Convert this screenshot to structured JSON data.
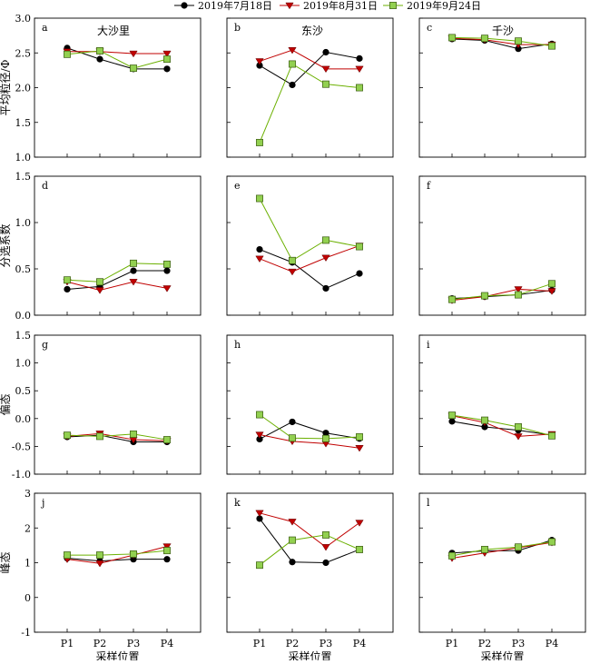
{
  "legend": [
    {
      "label": "2019年7月18日",
      "color": "#000000",
      "marker": "circle"
    },
    {
      "label": "2019年8月31日",
      "color": "#c00000",
      "marker": "triangle-down"
    },
    {
      "label": "2019年9月24日",
      "color": "#6bb000",
      "marker": "square"
    }
  ],
  "x_axis_title": "采样位置",
  "chart_data": [
    {
      "id": "a",
      "type": "line",
      "title": "大沙里",
      "ylabel": "平均粒径/Φ",
      "ylim": [
        1.0,
        3.0
      ],
      "yticks": [
        "1.0",
        "1.5",
        "2.0",
        "2.5",
        "3.0"
      ],
      "categories": [
        "P1",
        "P2",
        "P3",
        "P4"
      ],
      "series": [
        {
          "name": "2019年7月18日",
          "values": [
            2.57,
            2.41,
            2.27,
            2.27
          ]
        },
        {
          "name": "2019年8月31日",
          "values": [
            2.52,
            2.52,
            2.49,
            2.49
          ]
        },
        {
          "name": "2019年9月24日",
          "values": [
            2.48,
            2.53,
            2.28,
            2.41
          ]
        }
      ]
    },
    {
      "id": "b",
      "type": "line",
      "title": "东沙",
      "ylabel": "",
      "ylim": [
        1.0,
        3.0
      ],
      "yticks": [],
      "categories": [
        "P1",
        "P2",
        "P3",
        "P4"
      ],
      "series": [
        {
          "name": "2019年7月18日",
          "values": [
            2.32,
            2.04,
            2.51,
            2.42
          ]
        },
        {
          "name": "2019年8月31日",
          "values": [
            2.38,
            2.54,
            2.27,
            2.27
          ]
        },
        {
          "name": "2019年9月24日",
          "values": [
            1.21,
            2.34,
            2.05,
            2.0
          ]
        }
      ]
    },
    {
      "id": "c",
      "type": "line",
      "title": "千沙",
      "ylabel": "",
      "ylim": [
        1.0,
        3.0
      ],
      "yticks": [],
      "categories": [
        "P1",
        "P2",
        "P3",
        "P4"
      ],
      "series": [
        {
          "name": "2019年7月18日",
          "values": [
            2.7,
            2.68,
            2.56,
            2.63
          ]
        },
        {
          "name": "2019年8月31日",
          "values": [
            2.71,
            2.69,
            2.62,
            2.62
          ]
        },
        {
          "name": "2019年9月24日",
          "values": [
            2.72,
            2.71,
            2.67,
            2.6
          ]
        }
      ]
    },
    {
      "id": "d",
      "type": "line",
      "title": "",
      "ylabel": "分选系数",
      "ylim": [
        0,
        1.5
      ],
      "yticks": [
        "0.0",
        "0.5",
        "1.0",
        "1.5"
      ],
      "categories": [
        "P1",
        "P2",
        "P3",
        "P4"
      ],
      "series": [
        {
          "name": "2019年7月18日",
          "values": [
            0.28,
            0.31,
            0.48,
            0.48
          ]
        },
        {
          "name": "2019年8月31日",
          "values": [
            0.36,
            0.27,
            0.36,
            0.29
          ]
        },
        {
          "name": "2019年9月24日",
          "values": [
            0.38,
            0.36,
            0.56,
            0.55
          ]
        }
      ]
    },
    {
      "id": "e",
      "type": "line",
      "title": "",
      "ylabel": "",
      "ylim": [
        0,
        1.5
      ],
      "yticks": [],
      "categories": [
        "P1",
        "P2",
        "P3",
        "P4"
      ],
      "series": [
        {
          "name": "2019年7月18日",
          "values": [
            0.71,
            0.57,
            0.29,
            0.45
          ]
        },
        {
          "name": "2019年8月31日",
          "values": [
            0.61,
            0.47,
            0.62,
            0.75
          ]
        },
        {
          "name": "2019年9月24日",
          "values": [
            1.26,
            0.59,
            0.81,
            0.74
          ]
        }
      ]
    },
    {
      "id": "f",
      "type": "line",
      "title": "",
      "ylabel": "",
      "ylim": [
        0,
        1.5
      ],
      "yticks": [],
      "categories": [
        "P1",
        "P2",
        "P3",
        "P4"
      ],
      "series": [
        {
          "name": "2019年7月18日",
          "values": [
            0.18,
            0.2,
            0.22,
            0.27
          ]
        },
        {
          "name": "2019年8月31日",
          "values": [
            0.16,
            0.2,
            0.28,
            0.26
          ]
        },
        {
          "name": "2019年9月24日",
          "values": [
            0.17,
            0.21,
            0.22,
            0.34
          ]
        }
      ]
    },
    {
      "id": "g",
      "type": "line",
      "title": "",
      "ylabel": "偏态",
      "ylim": [
        -1.0,
        1.5
      ],
      "yticks": [
        "-1.0",
        "-0.5",
        "0.0",
        "0.5",
        "1.0",
        "1.5"
      ],
      "categories": [
        "P1",
        "P2",
        "P3",
        "P4"
      ],
      "series": [
        {
          "name": "2019年7月18日",
          "values": [
            -0.33,
            -0.3,
            -0.42,
            -0.42
          ]
        },
        {
          "name": "2019年8月31日",
          "values": [
            -0.32,
            -0.27,
            -0.38,
            -0.4
          ]
        },
        {
          "name": "2019年9月24日",
          "values": [
            -0.3,
            -0.32,
            -0.28,
            -0.38
          ]
        }
      ]
    },
    {
      "id": "h",
      "type": "line",
      "title": "",
      "ylabel": "",
      "ylim": [
        -1.0,
        1.5
      ],
      "yticks": [],
      "categories": [
        "P1",
        "P2",
        "P3",
        "P4"
      ],
      "series": [
        {
          "name": "2019年7月18日",
          "values": [
            -0.37,
            -0.06,
            -0.26,
            -0.36
          ]
        },
        {
          "name": "2019年8月31日",
          "values": [
            -0.29,
            -0.41,
            -0.45,
            -0.53
          ]
        },
        {
          "name": "2019年9月24日",
          "values": [
            0.07,
            -0.35,
            -0.36,
            -0.33
          ]
        }
      ]
    },
    {
      "id": "i",
      "type": "line",
      "title": "",
      "ylabel": "",
      "ylim": [
        -1.0,
        1.5
      ],
      "yticks": [],
      "categories": [
        "P1",
        "P2",
        "P3",
        "P4"
      ],
      "series": [
        {
          "name": "2019年7月18日",
          "values": [
            -0.05,
            -0.15,
            -0.21,
            -0.3
          ]
        },
        {
          "name": "2019年8月31日",
          "values": [
            0.05,
            -0.07,
            -0.32,
            -0.28
          ]
        },
        {
          "name": "2019年9月24日",
          "values": [
            0.06,
            -0.03,
            -0.15,
            -0.31
          ]
        }
      ]
    },
    {
      "id": "j",
      "type": "line",
      "title": "",
      "ylabel": "峰态",
      "ylim": [
        -1,
        3
      ],
      "yticks": [
        "-1",
        "0",
        "1",
        "2",
        "3"
      ],
      "categories": [
        "P1",
        "P2",
        "P3",
        "P4"
      ],
      "series": [
        {
          "name": "2019年7月18日",
          "values": [
            1.13,
            1.05,
            1.1,
            1.1
          ]
        },
        {
          "name": "2019年8月31日",
          "values": [
            1.1,
            0.98,
            1.22,
            1.47
          ]
        },
        {
          "name": "2019年9月24日",
          "values": [
            1.22,
            1.22,
            1.25,
            1.35
          ]
        }
      ]
    },
    {
      "id": "k",
      "type": "line",
      "title": "",
      "ylabel": "",
      "ylim": [
        -1,
        3
      ],
      "yticks": [],
      "categories": [
        "P1",
        "P2",
        "P3",
        "P4"
      ],
      "series": [
        {
          "name": "2019年7月18日",
          "values": [
            2.27,
            1.02,
            1.0,
            1.38
          ]
        },
        {
          "name": "2019年8月31日",
          "values": [
            2.43,
            2.18,
            1.45,
            2.15
          ]
        },
        {
          "name": "2019年9月24日",
          "values": [
            0.93,
            1.65,
            1.8,
            1.38
          ]
        }
      ]
    },
    {
      "id": "l",
      "type": "line",
      "title": "",
      "ylabel": "",
      "ylim": [
        -1,
        3
      ],
      "yticks": [],
      "categories": [
        "P1",
        "P2",
        "P3",
        "P4"
      ],
      "series": [
        {
          "name": "2019年7月18日",
          "values": [
            1.28,
            1.34,
            1.35,
            1.65
          ]
        },
        {
          "name": "2019年8月31日",
          "values": [
            1.13,
            1.28,
            1.43,
            1.58
          ]
        },
        {
          "name": "2019年9月24日",
          "values": [
            1.2,
            1.38,
            1.45,
            1.6
          ]
        }
      ]
    }
  ]
}
